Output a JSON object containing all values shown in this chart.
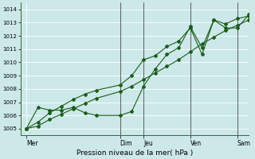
{
  "xlabel": "Pression niveau de la mer( hPa )",
  "bg_color": "#cce8e8",
  "grid_color": "#ffffff",
  "line_color": "#1a5c1a",
  "marker_color": "#1a5c1a",
  "ylim": [
    1004.5,
    1014.5
  ],
  "yticks": [
    1005,
    1006,
    1007,
    1008,
    1009,
    1010,
    1011,
    1012,
    1013,
    1014
  ],
  "x_day_labels": [
    "Mer",
    "Dim",
    "Jeu",
    "Ven",
    "Sam"
  ],
  "x_day_positions": [
    0,
    48,
    60,
    84,
    108
  ],
  "xlim": [
    -3,
    114
  ],
  "series1_x": [
    0,
    6,
    12,
    18,
    24,
    30,
    36,
    48,
    54,
    60,
    66,
    72,
    78,
    84,
    90,
    96,
    102,
    108,
    114
  ],
  "series1_y": [
    1005.0,
    1006.6,
    1006.4,
    1006.4,
    1006.6,
    1006.2,
    1006.0,
    1006.0,
    1006.3,
    1008.2,
    1009.5,
    1010.6,
    1011.1,
    1012.7,
    1011.1,
    1013.2,
    1012.9,
    1013.3,
    1013.5
  ],
  "series2_x": [
    0,
    6,
    12,
    18,
    24,
    30,
    36,
    48,
    54,
    60,
    66,
    72,
    78,
    84,
    90,
    96,
    102,
    108,
    114
  ],
  "series2_y": [
    1005.0,
    1005.2,
    1005.7,
    1006.1,
    1006.5,
    1006.9,
    1007.3,
    1007.8,
    1008.2,
    1008.7,
    1009.2,
    1009.7,
    1010.2,
    1010.8,
    1011.4,
    1011.9,
    1012.4,
    1012.8,
    1013.2
  ],
  "series3_x": [
    0,
    6,
    12,
    18,
    24,
    30,
    36,
    48,
    54,
    60,
    66,
    72,
    78,
    84,
    90,
    96,
    102,
    108,
    114
  ],
  "series3_y": [
    1005.0,
    1005.5,
    1006.2,
    1006.7,
    1007.2,
    1007.6,
    1007.9,
    1008.3,
    1009.0,
    1010.2,
    1010.5,
    1011.2,
    1011.6,
    1012.6,
    1010.6,
    1013.2,
    1012.6,
    1012.6,
    1013.6
  ],
  "vline_positions": [
    48,
    60,
    84,
    108
  ],
  "vline_color": "#444444"
}
